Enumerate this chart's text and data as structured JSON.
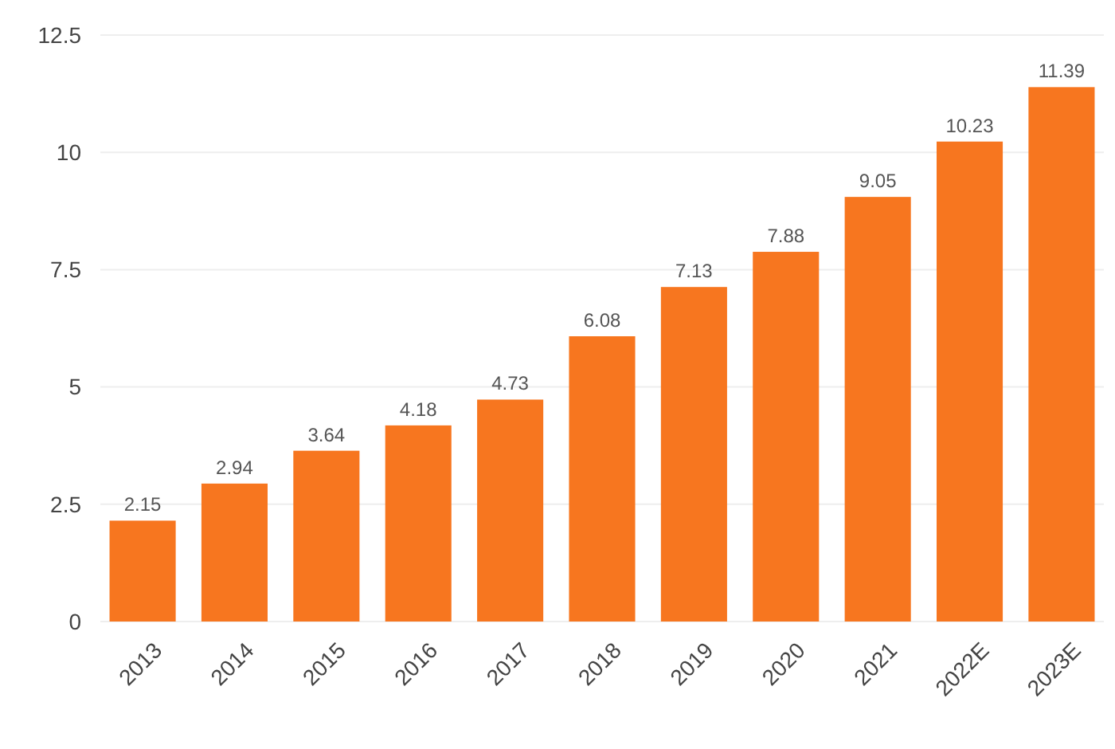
{
  "chart_data": {
    "type": "bar",
    "categories": [
      "2013",
      "2014",
      "2015",
      "2016",
      "2017",
      "2018",
      "2019",
      "2020",
      "2021",
      "2022E",
      "2023E"
    ],
    "values": [
      2.15,
      2.94,
      3.64,
      4.18,
      4.73,
      6.08,
      7.13,
      7.88,
      9.05,
      10.23,
      11.39
    ],
    "color": "#f7761f",
    "ylim": [
      0,
      12.5
    ],
    "yticks": [
      0,
      2.5,
      5,
      7.5,
      10,
      12.5
    ],
    "grid": "y",
    "data_labels": true
  }
}
